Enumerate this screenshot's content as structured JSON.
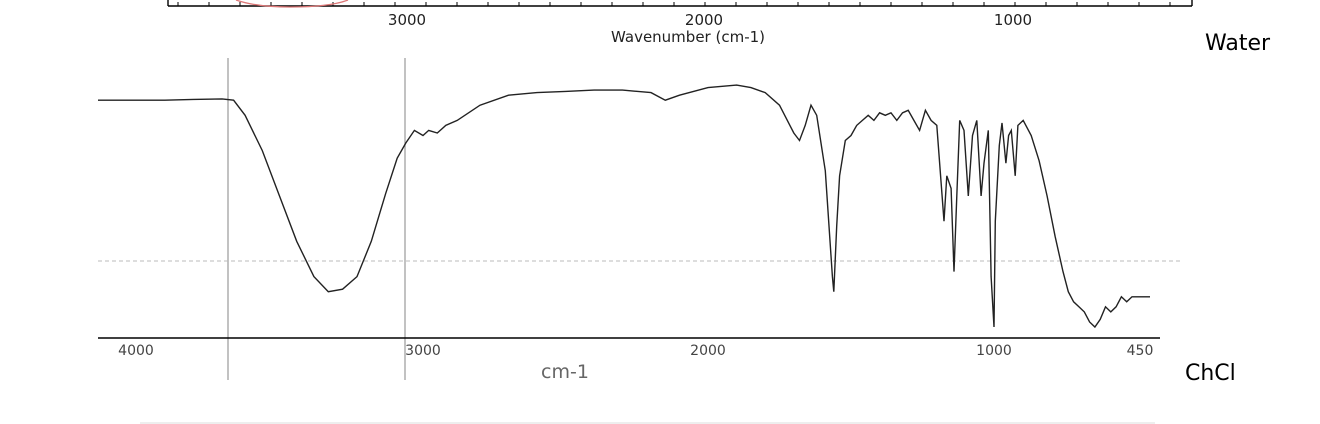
{
  "chart_data": [
    {
      "type": "line",
      "title": "",
      "xlabel": "Wavenumber (cm-1)",
      "ylabel": "",
      "x_ticks": [
        "3000",
        "2000",
        "1000"
      ],
      "series": []
    },
    {
      "type": "line",
      "title": "",
      "xlabel": "cm-1",
      "ylabel": "",
      "xlim": [
        4000,
        450
      ],
      "x_reversed": true,
      "x_ticks": [
        "4000",
        "3000",
        "2000",
        "1000",
        "450"
      ],
      "grid": false,
      "series": [
        {
          "points": [
            [
              4000,
              0.1
            ],
            [
              3900,
              0.1
            ],
            [
              3800,
              0.097
            ],
            [
              3700,
              0.095
            ],
            [
              3660,
              0.1
            ],
            [
              3620,
              0.16
            ],
            [
              3560,
              0.3
            ],
            [
              3500,
              0.48
            ],
            [
              3440,
              0.66
            ],
            [
              3380,
              0.8
            ],
            [
              3330,
              0.86
            ],
            [
              3280,
              0.85
            ],
            [
              3230,
              0.8
            ],
            [
              3180,
              0.66
            ],
            [
              3130,
              0.47
            ],
            [
              3090,
              0.33
            ],
            [
              3060,
              0.27
            ],
            [
              3030,
              0.22
            ],
            [
              3000,
              0.24
            ],
            [
              2980,
              0.22
            ],
            [
              2950,
              0.23
            ],
            [
              2920,
              0.2
            ],
            [
              2880,
              0.18
            ],
            [
              2800,
              0.12
            ],
            [
              2700,
              0.08
            ],
            [
              2600,
              0.07
            ],
            [
              2500,
              0.065
            ],
            [
              2400,
              0.06
            ],
            [
              2300,
              0.06
            ],
            [
              2200,
              0.07
            ],
            [
              2150,
              0.1
            ],
            [
              2100,
              0.08
            ],
            [
              2000,
              0.05
            ],
            [
              1900,
              0.04
            ],
            [
              1850,
              0.05
            ],
            [
              1800,
              0.07
            ],
            [
              1750,
              0.12
            ],
            [
              1700,
              0.23
            ],
            [
              1680,
              0.26
            ],
            [
              1660,
              0.2
            ],
            [
              1640,
              0.12
            ],
            [
              1620,
              0.16
            ],
            [
              1590,
              0.38
            ],
            [
              1565,
              0.8
            ],
            [
              1560,
              0.86
            ],
            [
              1550,
              0.6
            ],
            [
              1540,
              0.4
            ],
            [
              1520,
              0.26
            ],
            [
              1500,
              0.24
            ],
            [
              1480,
              0.2
            ],
            [
              1460,
              0.18
            ],
            [
              1440,
              0.16
            ],
            [
              1420,
              0.18
            ],
            [
              1400,
              0.15
            ],
            [
              1380,
              0.16
            ],
            [
              1360,
              0.15
            ],
            [
              1340,
              0.18
            ],
            [
              1320,
              0.15
            ],
            [
              1300,
              0.14
            ],
            [
              1280,
              0.18
            ],
            [
              1260,
              0.22
            ],
            [
              1240,
              0.14
            ],
            [
              1220,
              0.18
            ],
            [
              1200,
              0.2
            ],
            [
              1175,
              0.58
            ],
            [
              1165,
              0.4
            ],
            [
              1150,
              0.45
            ],
            [
              1140,
              0.78
            ],
            [
              1130,
              0.48
            ],
            [
              1120,
              0.18
            ],
            [
              1105,
              0.22
            ],
            [
              1090,
              0.48
            ],
            [
              1075,
              0.24
            ],
            [
              1060,
              0.18
            ],
            [
              1045,
              0.48
            ],
            [
              1035,
              0.35
            ],
            [
              1020,
              0.22
            ],
            [
              1010,
              0.8
            ],
            [
              1000,
              1.0
            ],
            [
              995,
              0.58
            ],
            [
              980,
              0.28
            ],
            [
              970,
              0.19
            ],
            [
              955,
              0.35
            ],
            [
              945,
              0.24
            ],
            [
              935,
              0.22
            ],
            [
              920,
              0.4
            ],
            [
              910,
              0.2
            ],
            [
              890,
              0.18
            ],
            [
              860,
              0.24
            ],
            [
              830,
              0.34
            ],
            [
              800,
              0.48
            ],
            [
              770,
              0.64
            ],
            [
              740,
              0.78
            ],
            [
              720,
              0.86
            ],
            [
              700,
              0.9
            ],
            [
              680,
              0.92
            ],
            [
              660,
              0.94
            ],
            [
              640,
              0.98
            ],
            [
              620,
              1.0
            ],
            [
              600,
              0.97
            ],
            [
              580,
              0.92
            ],
            [
              560,
              0.94
            ],
            [
              540,
              0.92
            ],
            [
              520,
              0.88
            ],
            [
              500,
              0.9
            ],
            [
              480,
              0.88
            ]
          ]
        }
      ],
      "guides": [
        3650,
        3025
      ]
    }
  ],
  "labels": {
    "water": "Water",
    "chcl": "ChCl"
  }
}
